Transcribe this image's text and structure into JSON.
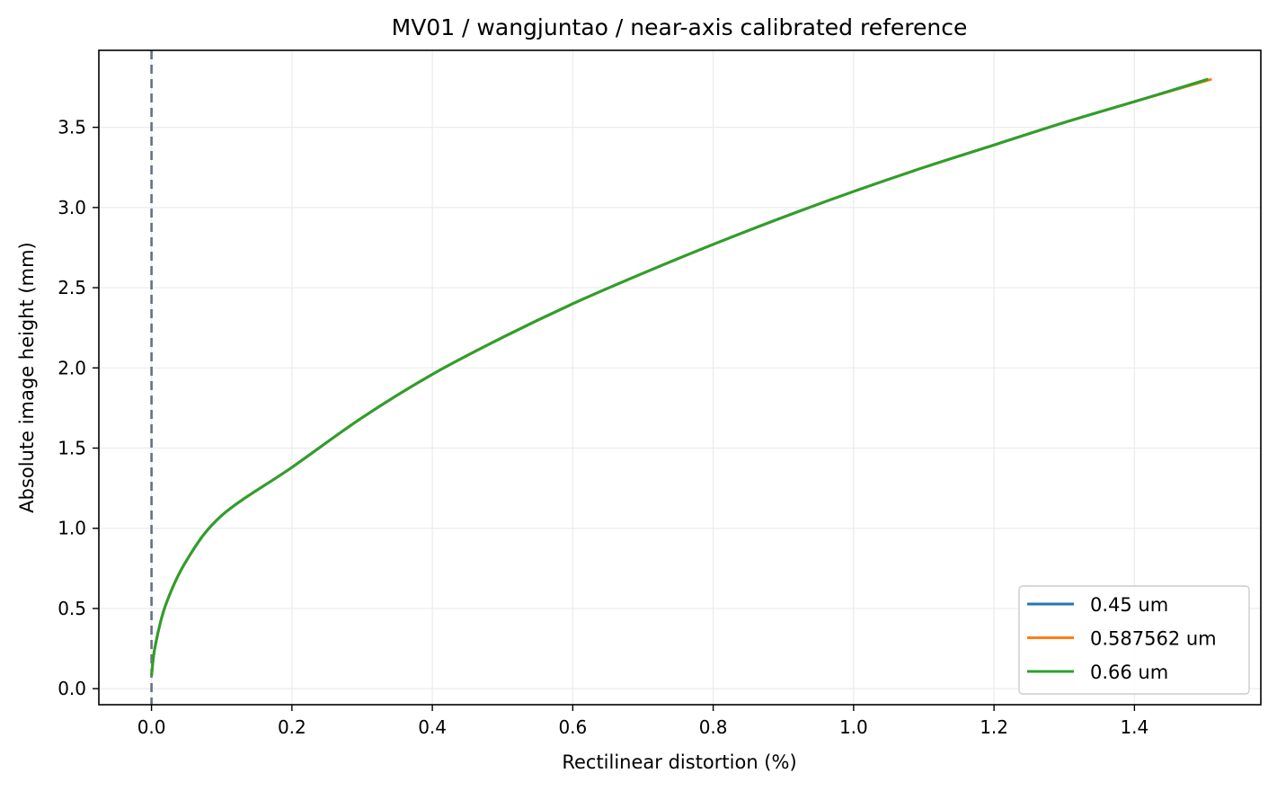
{
  "chart_data": {
    "type": "line",
    "title": "MV01 / wangjuntao / near-axis calibrated reference",
    "xlabel": "Rectilinear distortion (%)",
    "ylabel": "Absolute image height (mm)",
    "xlim": [
      -0.075,
      1.58
    ],
    "ylim": [
      -0.1,
      3.98
    ],
    "xticks": [
      "0.0",
      "0.2",
      "0.4",
      "0.6",
      "0.8",
      "1.0",
      "1.2",
      "1.4"
    ],
    "yticks": [
      "0.0",
      "0.5",
      "1.0",
      "1.5",
      "2.0",
      "2.5",
      "3.0",
      "3.5"
    ],
    "grid": true,
    "legend_position": "lower right",
    "reference_line": {
      "x": 0.0,
      "style": "dashed",
      "color": "#667085"
    },
    "series": [
      {
        "name": "0.45 um",
        "color": "#1f77b4",
        "x": [
          0.0,
          0.005,
          0.02,
          0.05,
          0.1,
          0.2,
          0.3,
          0.4,
          0.5,
          0.6,
          0.7,
          0.8,
          0.9,
          1.0,
          1.1,
          1.2,
          1.3,
          1.4,
          1.505
        ],
        "y": [
          0.08,
          0.26,
          0.52,
          0.8,
          1.08,
          1.38,
          1.69,
          1.96,
          2.19,
          2.4,
          2.59,
          2.77,
          2.94,
          3.1,
          3.25,
          3.39,
          3.53,
          3.66,
          3.8
        ]
      },
      {
        "name": "0.587562 um",
        "color": "#ff7f0e",
        "x": [
          0.0,
          0.005,
          0.02,
          0.05,
          0.1,
          0.2,
          0.3,
          0.4,
          0.5,
          0.6,
          0.7,
          0.8,
          0.9,
          1.0,
          1.1,
          1.2,
          1.3,
          1.4,
          1.51
        ],
        "y": [
          0.08,
          0.26,
          0.52,
          0.8,
          1.08,
          1.38,
          1.69,
          1.96,
          2.19,
          2.4,
          2.59,
          2.77,
          2.94,
          3.1,
          3.25,
          3.39,
          3.53,
          3.66,
          3.8
        ]
      },
      {
        "name": "0.66 um",
        "color": "#2ca02c",
        "x": [
          0.0,
          0.005,
          0.02,
          0.05,
          0.1,
          0.2,
          0.3,
          0.4,
          0.5,
          0.6,
          0.7,
          0.8,
          0.9,
          1.0,
          1.1,
          1.2,
          1.3,
          1.4,
          1.505
        ],
        "y": [
          0.08,
          0.26,
          0.52,
          0.8,
          1.08,
          1.38,
          1.69,
          1.96,
          2.19,
          2.4,
          2.59,
          2.77,
          2.94,
          3.1,
          3.25,
          3.39,
          3.53,
          3.66,
          3.8
        ]
      }
    ]
  }
}
